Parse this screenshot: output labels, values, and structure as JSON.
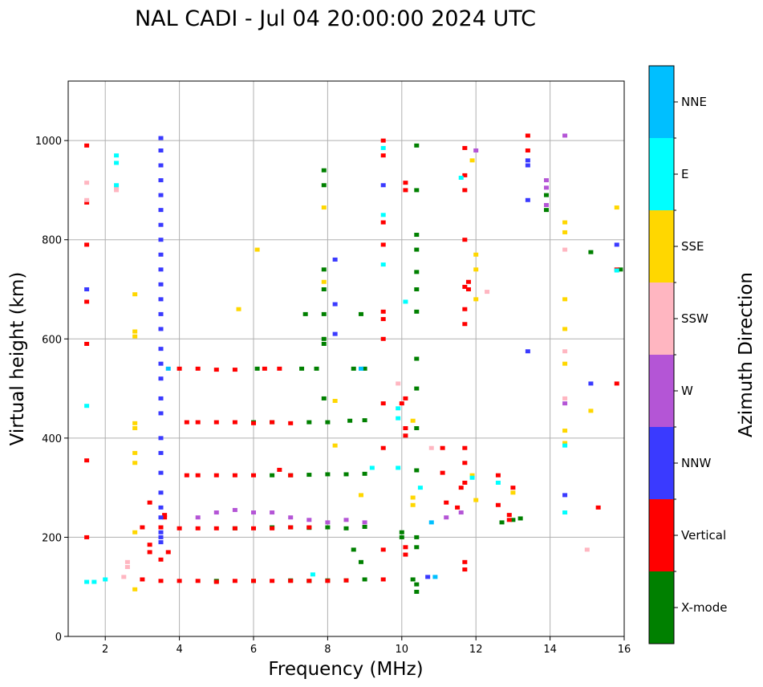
{
  "chart_data": {
    "type": "scatter",
    "title": "NAL CADI - Jul 04 20:00:00 2024 UTC",
    "xlabel": "Frequency (MHz)",
    "ylabel": "Virtual height (km)",
    "xlim": [
      1,
      16
    ],
    "ylim": [
      0,
      1120
    ],
    "xticks": [
      2,
      4,
      6,
      8,
      10,
      12,
      14,
      16
    ],
    "yticks": [
      0,
      200,
      400,
      600,
      800,
      1000
    ],
    "grid": true,
    "colorbar": {
      "label": "Azimuth Direction",
      "categories": [
        {
          "name": "X-mode",
          "color": "#008000"
        },
        {
          "name": "Vertical",
          "color": "#ff0000"
        },
        {
          "name": "NNW",
          "color": "#3a3aff"
        },
        {
          "name": "W",
          "color": "#b455d6"
        },
        {
          "name": "SSW",
          "color": "#ffb6c1"
        },
        {
          "name": "SSE",
          "color": "#ffd700"
        },
        {
          "name": "E",
          "color": "#00ffff"
        },
        {
          "name": "NNE",
          "color": "#00bfff"
        }
      ]
    },
    "series": [
      {
        "name": "X-mode",
        "points": [
          [
            5.0,
            112
          ],
          [
            6.0,
            112
          ],
          [
            7.0,
            113
          ],
          [
            7.5,
            112
          ],
          [
            8.0,
            113
          ],
          [
            8.5,
            113
          ],
          [
            9.0,
            115
          ],
          [
            5.5,
            218
          ],
          [
            6.5,
            220
          ],
          [
            7.0,
            220
          ],
          [
            7.5,
            219
          ],
          [
            8.0,
            220
          ],
          [
            8.5,
            218
          ],
          [
            9.0,
            221
          ],
          [
            6.5,
            325
          ],
          [
            7.0,
            325
          ],
          [
            7.5,
            326
          ],
          [
            8.0,
            327
          ],
          [
            8.5,
            327
          ],
          [
            9.0,
            328
          ],
          [
            6.0,
            432
          ],
          [
            6.5,
            432
          ],
          [
            7.5,
            432
          ],
          [
            8.0,
            432
          ],
          [
            8.6,
            435
          ],
          [
            9.0,
            436
          ],
          [
            6.1,
            540
          ],
          [
            7.3,
            540
          ],
          [
            7.7,
            540
          ],
          [
            8.7,
            540
          ],
          [
            9.0,
            540
          ],
          [
            10.0,
            200
          ],
          [
            10.0,
            210
          ],
          [
            10.3,
            115
          ],
          [
            10.4,
            90
          ],
          [
            10.4,
            105
          ],
          [
            10.4,
            180
          ],
          [
            10.4,
            200
          ],
          [
            10.4,
            335
          ],
          [
            10.4,
            420
          ],
          [
            10.4,
            500
          ],
          [
            10.4,
            560
          ],
          [
            10.4,
            655
          ],
          [
            10.4,
            700
          ],
          [
            10.4,
            735
          ],
          [
            10.4,
            780
          ],
          [
            10.4,
            810
          ],
          [
            10.4,
            900
          ],
          [
            10.4,
            990
          ],
          [
            7.4,
            650
          ],
          [
            7.9,
            650
          ],
          [
            7.9,
            600
          ],
          [
            7.9,
            590
          ],
          [
            7.9,
            480
          ],
          [
            7.9,
            740
          ],
          [
            7.9,
            700
          ],
          [
            7.9,
            910
          ],
          [
            7.9,
            940
          ],
          [
            8.7,
            175
          ],
          [
            8.9,
            150
          ],
          [
            8.9,
            650
          ],
          [
            12.7,
            230
          ],
          [
            13.0,
            235
          ],
          [
            13.2,
            238
          ],
          [
            13.9,
            860
          ],
          [
            13.9,
            890
          ],
          [
            15.1,
            775
          ],
          [
            15.9,
            740
          ]
        ]
      },
      {
        "name": "Vertical",
        "points": [
          [
            1.5,
            990
          ],
          [
            1.5,
            875
          ],
          [
            1.5,
            790
          ],
          [
            1.5,
            675
          ],
          [
            1.5,
            590
          ],
          [
            1.5,
            355
          ],
          [
            1.5,
            200
          ],
          [
            3.0,
            115
          ],
          [
            3.5,
            112
          ],
          [
            4.0,
            112
          ],
          [
            4.5,
            112
          ],
          [
            5.0,
            110
          ],
          [
            5.5,
            112
          ],
          [
            6.0,
            112
          ],
          [
            6.5,
            112
          ],
          [
            7.0,
            112
          ],
          [
            7.5,
            112
          ],
          [
            8.0,
            112
          ],
          [
            8.5,
            113
          ],
          [
            3.0,
            220
          ],
          [
            3.5,
            220
          ],
          [
            4.0,
            218
          ],
          [
            4.5,
            218
          ],
          [
            5.0,
            218
          ],
          [
            5.5,
            218
          ],
          [
            6.0,
            218
          ],
          [
            6.5,
            218
          ],
          [
            7.0,
            220
          ],
          [
            7.5,
            220
          ],
          [
            4.2,
            325
          ],
          [
            4.5,
            325
          ],
          [
            5.0,
            325
          ],
          [
            5.5,
            325
          ],
          [
            6.0,
            325
          ],
          [
            6.7,
            336
          ],
          [
            7.0,
            325
          ],
          [
            4.2,
            432
          ],
          [
            4.5,
            432
          ],
          [
            5.0,
            432
          ],
          [
            5.5,
            432
          ],
          [
            6.0,
            430
          ],
          [
            6.5,
            432
          ],
          [
            7.0,
            430
          ],
          [
            4.0,
            540
          ],
          [
            4.5,
            540
          ],
          [
            5.0,
            538
          ],
          [
            5.5,
            538
          ],
          [
            6.3,
            540
          ],
          [
            6.7,
            540
          ],
          [
            3.2,
            185
          ],
          [
            3.2,
            170
          ],
          [
            3.7,
            170
          ],
          [
            3.2,
            270
          ],
          [
            3.6,
            245
          ],
          [
            3.6,
            240
          ],
          [
            3.5,
            155
          ],
          [
            9.5,
            1000
          ],
          [
            9.5,
            970
          ],
          [
            9.5,
            835
          ],
          [
            9.5,
            790
          ],
          [
            9.5,
            655
          ],
          [
            9.5,
            640
          ],
          [
            9.5,
            600
          ],
          [
            9.5,
            470
          ],
          [
            9.5,
            380
          ],
          [
            9.5,
            175
          ],
          [
            9.5,
            115
          ],
          [
            10.0,
            470
          ],
          [
            10.1,
            480
          ],
          [
            10.1,
            405
          ],
          [
            10.1,
            420
          ],
          [
            10.1,
            900
          ],
          [
            10.1,
            915
          ],
          [
            10.1,
            180
          ],
          [
            10.1,
            165
          ],
          [
            11.1,
            380
          ],
          [
            11.1,
            330
          ],
          [
            11.2,
            270
          ],
          [
            11.5,
            260
          ],
          [
            11.6,
            300
          ],
          [
            11.7,
            985
          ],
          [
            11.7,
            930
          ],
          [
            11.7,
            900
          ],
          [
            11.7,
            800
          ],
          [
            11.7,
            705
          ],
          [
            11.7,
            660
          ],
          [
            11.7,
            630
          ],
          [
            11.7,
            380
          ],
          [
            11.7,
            350
          ],
          [
            11.7,
            310
          ],
          [
            11.7,
            150
          ],
          [
            11.7,
            135
          ],
          [
            11.8,
            715
          ],
          [
            11.8,
            700
          ],
          [
            12.6,
            325
          ],
          [
            12.6,
            265
          ],
          [
            12.9,
            245
          ],
          [
            12.9,
            235
          ],
          [
            13.0,
            300
          ],
          [
            13.4,
            1010
          ],
          [
            13.4,
            980
          ],
          [
            15.3,
            260
          ],
          [
            15.8,
            740
          ],
          [
            15.8,
            510
          ]
        ]
      },
      {
        "name": "NNW",
        "points": [
          [
            3.5,
            1005
          ],
          [
            3.5,
            980
          ],
          [
            3.5,
            950
          ],
          [
            3.5,
            920
          ],
          [
            3.5,
            890
          ],
          [
            3.5,
            860
          ],
          [
            3.5,
            830
          ],
          [
            3.5,
            800
          ],
          [
            3.5,
            770
          ],
          [
            3.5,
            740
          ],
          [
            3.5,
            710
          ],
          [
            3.5,
            680
          ],
          [
            3.5,
            650
          ],
          [
            3.5,
            620
          ],
          [
            3.5,
            580
          ],
          [
            3.5,
            550
          ],
          [
            3.5,
            520
          ],
          [
            3.5,
            480
          ],
          [
            3.5,
            450
          ],
          [
            3.5,
            400
          ],
          [
            3.5,
            370
          ],
          [
            3.5,
            330
          ],
          [
            3.5,
            290
          ],
          [
            3.5,
            260
          ],
          [
            3.5,
            240
          ],
          [
            3.5,
            210
          ],
          [
            3.5,
            200
          ],
          [
            3.5,
            190
          ],
          [
            1.5,
            700
          ],
          [
            8.2,
            760
          ],
          [
            8.2,
            670
          ],
          [
            8.2,
            610
          ],
          [
            9.5,
            910
          ],
          [
            10.7,
            120
          ],
          [
            13.4,
            960
          ],
          [
            13.4,
            950
          ],
          [
            13.4,
            880
          ],
          [
            13.4,
            575
          ],
          [
            14.4,
            285
          ],
          [
            15.1,
            510
          ],
          [
            15.8,
            790
          ]
        ]
      },
      {
        "name": "W",
        "points": [
          [
            4.5,
            240
          ],
          [
            5.0,
            250
          ],
          [
            5.5,
            255
          ],
          [
            6.0,
            250
          ],
          [
            6.5,
            250
          ],
          [
            7.0,
            240
          ],
          [
            7.5,
            235
          ],
          [
            8.0,
            230
          ],
          [
            8.5,
            235
          ],
          [
            9.0,
            230
          ],
          [
            11.2,
            240
          ],
          [
            11.6,
            250
          ],
          [
            12.0,
            980
          ],
          [
            13.9,
            920
          ],
          [
            13.9,
            905
          ],
          [
            13.9,
            870
          ],
          [
            14.4,
            1010
          ],
          [
            14.4,
            470
          ]
        ]
      },
      {
        "name": "SSW",
        "points": [
          [
            1.5,
            915
          ],
          [
            1.5,
            880
          ],
          [
            2.3,
            905
          ],
          [
            2.3,
            900
          ],
          [
            2.5,
            120
          ],
          [
            2.6,
            140
          ],
          [
            2.6,
            150
          ],
          [
            9.9,
            510
          ],
          [
            10.8,
            380
          ],
          [
            14.4,
            780
          ],
          [
            14.4,
            575
          ],
          [
            14.4,
            480
          ],
          [
            15.0,
            175
          ],
          [
            12.3,
            695
          ]
        ]
      },
      {
        "name": "SSE",
        "points": [
          [
            2.8,
            690
          ],
          [
            2.8,
            615
          ],
          [
            2.8,
            605
          ],
          [
            2.8,
            430
          ],
          [
            2.8,
            420
          ],
          [
            2.8,
            370
          ],
          [
            2.8,
            350
          ],
          [
            2.8,
            210
          ],
          [
            2.8,
            95
          ],
          [
            5.6,
            660
          ],
          [
            6.1,
            780
          ],
          [
            7.9,
            865
          ],
          [
            7.9,
            715
          ],
          [
            8.2,
            385
          ],
          [
            8.2,
            475
          ],
          [
            8.9,
            285
          ],
          [
            10.3,
            280
          ],
          [
            10.3,
            265
          ],
          [
            10.3,
            435
          ],
          [
            11.9,
            960
          ],
          [
            11.9,
            325
          ],
          [
            12.0,
            770
          ],
          [
            12.0,
            740
          ],
          [
            12.0,
            680
          ],
          [
            12.0,
            275
          ],
          [
            13.0,
            290
          ],
          [
            14.4,
            835
          ],
          [
            14.4,
            815
          ],
          [
            14.4,
            680
          ],
          [
            14.4,
            620
          ],
          [
            14.4,
            550
          ],
          [
            14.4,
            415
          ],
          [
            14.4,
            390
          ],
          [
            15.1,
            455
          ],
          [
            15.8,
            865
          ]
        ]
      },
      {
        "name": "E",
        "points": [
          [
            1.5,
            465
          ],
          [
            2.3,
            970
          ],
          [
            2.3,
            955
          ],
          [
            2.3,
            910
          ],
          [
            1.5,
            110
          ],
          [
            1.7,
            110
          ],
          [
            2.0,
            115
          ],
          [
            7.6,
            125
          ],
          [
            9.2,
            340
          ],
          [
            9.5,
            985
          ],
          [
            9.5,
            850
          ],
          [
            9.5,
            750
          ],
          [
            9.9,
            460
          ],
          [
            9.9,
            440
          ],
          [
            9.9,
            340
          ],
          [
            10.1,
            675
          ],
          [
            10.5,
            300
          ],
          [
            11.6,
            925
          ],
          [
            11.9,
            320
          ],
          [
            12.6,
            310
          ],
          [
            14.4,
            385
          ],
          [
            14.4,
            250
          ],
          [
            15.8,
            738
          ]
        ]
      },
      {
        "name": "NNE",
        "points": [
          [
            3.7,
            540
          ],
          [
            8.9,
            540
          ],
          [
            10.8,
            230
          ],
          [
            10.9,
            120
          ]
        ]
      }
    ]
  }
}
